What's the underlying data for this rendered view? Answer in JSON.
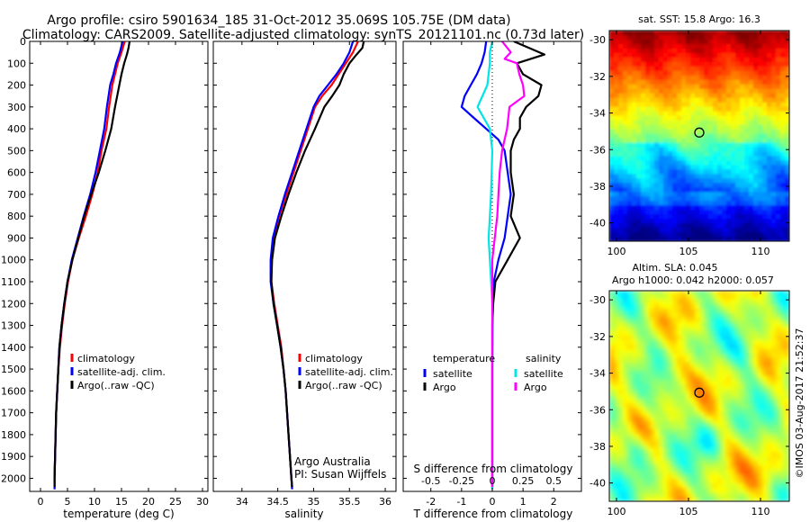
{
  "header": {
    "title_line1": "Argo profile: csiro 5901634_185 31-Oct-2012 35.069S 105.75E (DM data)",
    "title_line2": "Climatology: CARS2009. Satellite-adjusted climatology: synTS_20121101.nc (0.73d later)"
  },
  "footer": {
    "timestamp": "©IMOS 03-Aug-2017 21:52:37",
    "org": "Argo Australia",
    "pi": "PI: Susan Wijffels"
  },
  "colors": {
    "climatology": "#ff0000",
    "satellite": "#0000ff",
    "argo": "#000000",
    "sat_salinity": "#00e5e5",
    "argo_salinity": "#ff00ff"
  },
  "chart_data": [
    {
      "type": "line",
      "id": "temperature",
      "xlabel": "temperature (deg C)",
      "ylabel": "",
      "xlim": [
        -2,
        31
      ],
      "ylim": [
        2060,
        0
      ],
      "x_ticks": [
        0,
        5,
        10,
        15,
        20,
        25,
        30
      ],
      "y_ticks": [
        0,
        100,
        200,
        300,
        400,
        500,
        600,
        700,
        800,
        900,
        1000,
        1100,
        1200,
        1300,
        1400,
        1500,
        1600,
        1700,
        1800,
        1900,
        2000
      ],
      "legend": {
        "position": "middle-right",
        "entries": [
          "climatology",
          "satellite-adj. clim.",
          "Argo(..raw -QC)"
        ]
      },
      "series": [
        {
          "name": "climatology",
          "color": "#ff0000",
          "points": [
            [
              15.6,
              0
            ],
            [
              15.0,
              50
            ],
            [
              14.3,
              100
            ],
            [
              13.8,
              150
            ],
            [
              13.3,
              200
            ],
            [
              12.7,
              300
            ],
            [
              12.2,
              400
            ],
            [
              11.3,
              500
            ],
            [
              10.6,
              600
            ],
            [
              9.6,
              700
            ],
            [
              8.4,
              800
            ],
            [
              7.1,
              900
            ],
            [
              5.9,
              1000
            ],
            [
              5.1,
              1100
            ],
            [
              4.5,
              1200
            ],
            [
              4.0,
              1300
            ],
            [
              3.6,
              1400
            ],
            [
              3.3,
              1500
            ],
            [
              3.1,
              1600
            ],
            [
              2.9,
              1700
            ],
            [
              2.8,
              1800
            ],
            [
              2.7,
              1900
            ],
            [
              2.6,
              2000
            ],
            [
              2.6,
              2050
            ]
          ]
        },
        {
          "name": "satellite-adj. clim.",
          "color": "#0000ff",
          "points": [
            [
              15.2,
              0
            ],
            [
              14.7,
              50
            ],
            [
              14.0,
              100
            ],
            [
              13.5,
              150
            ],
            [
              12.9,
              200
            ],
            [
              12.3,
              300
            ],
            [
              11.8,
              400
            ],
            [
              11.0,
              500
            ],
            [
              10.2,
              600
            ],
            [
              9.2,
              700
            ],
            [
              8.0,
              800
            ],
            [
              6.9,
              900
            ],
            [
              5.8,
              1000
            ],
            [
              5.0,
              1100
            ],
            [
              4.4,
              1200
            ],
            [
              3.9,
              1300
            ],
            [
              3.5,
              1400
            ],
            [
              3.3,
              1500
            ],
            [
              3.1,
              1600
            ],
            [
              2.9,
              1700
            ],
            [
              2.8,
              1800
            ],
            [
              2.7,
              1900
            ],
            [
              2.6,
              2000
            ],
            [
              2.6,
              2050
            ]
          ]
        },
        {
          "name": "Argo(..raw -QC)",
          "color": "#000000",
          "points": [
            [
              16.5,
              0
            ],
            [
              16.3,
              30
            ],
            [
              16.0,
              60
            ],
            [
              15.5,
              100
            ],
            [
              15.0,
              150
            ],
            [
              14.6,
              200
            ],
            [
              14.2,
              250
            ],
            [
              13.8,
              300
            ],
            [
              13.1,
              400
            ],
            [
              12.0,
              500
            ],
            [
              10.8,
              600
            ],
            [
              9.4,
              700
            ],
            [
              8.1,
              800
            ],
            [
              7.0,
              900
            ],
            [
              5.9,
              1000
            ],
            [
              5.0,
              1100
            ],
            [
              4.4,
              1200
            ],
            [
              3.9,
              1300
            ],
            [
              3.5,
              1400
            ],
            [
              3.3,
              1500
            ],
            [
              3.1,
              1600
            ],
            [
              2.9,
              1700
            ],
            [
              2.8,
              1800
            ],
            [
              2.7,
              1900
            ],
            [
              2.6,
              2000
            ],
            [
              2.6,
              2040
            ]
          ]
        }
      ]
    },
    {
      "type": "line",
      "id": "salinity",
      "xlabel": "salinity",
      "ylabel": "",
      "xlim": [
        33.6,
        36.15
      ],
      "ylim": [
        2060,
        0
      ],
      "x_ticks": [
        34,
        34.5,
        35,
        35.5,
        36
      ],
      "legend": {
        "position": "middle-right",
        "entries": [
          "climatology",
          "satellite-adj. clim.",
          "Argo(..raw -QC)"
        ]
      },
      "series": [
        {
          "name": "climatology",
          "color": "#ff0000",
          "points": [
            [
              35.62,
              0
            ],
            [
              35.55,
              50
            ],
            [
              35.45,
              100
            ],
            [
              35.35,
              150
            ],
            [
              35.25,
              200
            ],
            [
              35.12,
              250
            ],
            [
              35.02,
              300
            ],
            [
              34.92,
              400
            ],
            [
              34.82,
              500
            ],
            [
              34.72,
              600
            ],
            [
              34.62,
              700
            ],
            [
              34.52,
              800
            ],
            [
              34.44,
              900
            ],
            [
              34.41,
              1000
            ],
            [
              34.41,
              1100
            ],
            [
              34.45,
              1200
            ],
            [
              34.5,
              1300
            ],
            [
              34.55,
              1400
            ],
            [
              34.58,
              1500
            ],
            [
              34.61,
              1600
            ],
            [
              34.63,
              1700
            ],
            [
              34.65,
              1800
            ],
            [
              34.67,
              1900
            ],
            [
              34.69,
              2000
            ],
            [
              34.7,
              2050
            ]
          ]
        },
        {
          "name": "satellite-adj. clim.",
          "color": "#0000ff",
          "points": [
            [
              35.55,
              0
            ],
            [
              35.5,
              50
            ],
            [
              35.42,
              100
            ],
            [
              35.32,
              150
            ],
            [
              35.2,
              200
            ],
            [
              35.08,
              250
            ],
            [
              35.0,
              300
            ],
            [
              34.9,
              400
            ],
            [
              34.8,
              500
            ],
            [
              34.7,
              600
            ],
            [
              34.6,
              700
            ],
            [
              34.51,
              800
            ],
            [
              34.43,
              900
            ],
            [
              34.4,
              1000
            ],
            [
              34.4,
              1100
            ],
            [
              34.44,
              1200
            ],
            [
              34.49,
              1300
            ],
            [
              34.54,
              1400
            ],
            [
              34.58,
              1500
            ],
            [
              34.61,
              1600
            ],
            [
              34.63,
              1700
            ],
            [
              34.65,
              1800
            ],
            [
              34.67,
              1900
            ],
            [
              34.69,
              2000
            ],
            [
              34.7,
              2050
            ]
          ]
        },
        {
          "name": "Argo(..raw -QC)",
          "color": "#000000",
          "points": [
            [
              35.7,
              0
            ],
            [
              35.68,
              30
            ],
            [
              35.6,
              60
            ],
            [
              35.5,
              100
            ],
            [
              35.42,
              150
            ],
            [
              35.36,
              200
            ],
            [
              35.26,
              250
            ],
            [
              35.15,
              300
            ],
            [
              35.02,
              400
            ],
            [
              34.88,
              500
            ],
            [
              34.76,
              600
            ],
            [
              34.65,
              700
            ],
            [
              34.55,
              800
            ],
            [
              34.46,
              900
            ],
            [
              34.42,
              1000
            ],
            [
              34.41,
              1100
            ],
            [
              34.44,
              1200
            ],
            [
              34.49,
              1300
            ],
            [
              34.54,
              1400
            ],
            [
              34.58,
              1500
            ],
            [
              34.61,
              1600
            ],
            [
              34.63,
              1700
            ],
            [
              34.65,
              1800
            ],
            [
              34.67,
              1900
            ],
            [
              34.69,
              2000
            ],
            [
              34.7,
              2040
            ]
          ]
        }
      ]
    },
    {
      "type": "line",
      "id": "difference",
      "xlabel": "T difference from climatology",
      "top_label": "S difference from climatology",
      "xlim": [
        -2.9,
        2.9
      ],
      "ylim": [
        2060,
        0
      ],
      "x_ticks": [
        -2,
        -1,
        0,
        1,
        2
      ],
      "x_tick_labels": [
        "-2",
        "-1",
        "0",
        "1",
        "2"
      ],
      "s_ticks": [
        -0.5,
        -0.25,
        0,
        0.25,
        0.5
      ],
      "s_tick_labels": [
        "-0.5",
        "-0.25",
        "0",
        "0.25",
        "0.5"
      ],
      "s_scale": 4,
      "legend": {
        "position": "middle",
        "temperature_header": "temperature",
        "salinity_header": "salinity",
        "entries": [
          "satellite",
          "Argo",
          "satellite",
          "Argo"
        ]
      },
      "series": [
        {
          "name": "satellite",
          "group": "temperature",
          "color": "#0000ff",
          "points": [
            [
              -0.2,
              0
            ],
            [
              -0.25,
              50
            ],
            [
              -0.35,
              100
            ],
            [
              -0.5,
              150
            ],
            [
              -0.7,
              200
            ],
            [
              -0.9,
              250
            ],
            [
              -1.0,
              300
            ],
            [
              -0.6,
              350
            ],
            [
              -0.2,
              400
            ],
            [
              0.2,
              450
            ],
            [
              0.4,
              500
            ],
            [
              0.5,
              600
            ],
            [
              0.6,
              700
            ],
            [
              0.5,
              800
            ],
            [
              0.4,
              900
            ],
            [
              0.2,
              1000
            ],
            [
              0.05,
              1100
            ],
            [
              0.02,
              1200
            ],
            [
              0.01,
              1300
            ],
            [
              0.0,
              1500
            ],
            [
              0.0,
              2050
            ]
          ]
        },
        {
          "name": "Argo",
          "group": "temperature",
          "color": "#000000",
          "points": [
            [
              0.7,
              0
            ],
            [
              1.7,
              60
            ],
            [
              0.8,
              100
            ],
            [
              1.0,
              150
            ],
            [
              1.6,
              200
            ],
            [
              1.5,
              250
            ],
            [
              1.1,
              300
            ],
            [
              0.9,
              350
            ],
            [
              0.9,
              400
            ],
            [
              0.7,
              450
            ],
            [
              0.6,
              500
            ],
            [
              0.6,
              600
            ],
            [
              0.7,
              700
            ],
            [
              0.6,
              800
            ],
            [
              0.9,
              900
            ],
            [
              0.5,
              1000
            ],
            [
              0.1,
              1100
            ],
            [
              0.03,
              1200
            ],
            [
              0.0,
              1300
            ],
            [
              0.0,
              2040
            ]
          ]
        },
        {
          "name": "satellite",
          "group": "salinity",
          "color": "#00e5e5",
          "points": [
            [
              0.0,
              0
            ],
            [
              -0.02,
              50
            ],
            [
              -0.02,
              100
            ],
            [
              -0.04,
              200
            ],
            [
              -0.12,
              300
            ],
            [
              -0.02,
              400
            ],
            [
              0.0,
              500
            ],
            [
              -0.01,
              700
            ],
            [
              -0.02,
              800
            ],
            [
              -0.03,
              900
            ],
            [
              -0.02,
              1000
            ],
            [
              0.0,
              1200
            ],
            [
              0.0,
              2050
            ]
          ]
        },
        {
          "name": "Argo",
          "group": "salinity",
          "color": "#ff00ff",
          "points": [
            [
              0.08,
              0
            ],
            [
              0.15,
              50
            ],
            [
              0.1,
              80
            ],
            [
              0.2,
              100
            ],
            [
              0.22,
              150
            ],
            [
              0.25,
              200
            ],
            [
              0.26,
              250
            ],
            [
              0.14,
              300
            ],
            [
              0.12,
              400
            ],
            [
              0.08,
              500
            ],
            [
              0.06,
              600
            ],
            [
              0.04,
              800
            ],
            [
              0.0,
              1000
            ],
            [
              0.0,
              2040
            ]
          ]
        }
      ]
    },
    {
      "type": "heatmap",
      "id": "sst_map",
      "title": "sat. SST: 15.8  Argo: 16.3",
      "xlim": [
        99.5,
        112
      ],
      "ylim": [
        -41,
        -29.5
      ],
      "x_ticks": [
        100,
        105,
        110
      ],
      "y_ticks": [
        -30,
        -32,
        -34,
        -36,
        -38,
        -40
      ],
      "colormap": "jet",
      "marker": {
        "lon": 105.75,
        "lat": -35.069
      }
    },
    {
      "type": "heatmap",
      "id": "sla_map",
      "title_line1": "Altim. SLA: 0.045",
      "title_line2": "Argo h1000: 0.042 h2000: 0.057",
      "xlim": [
        99.5,
        112
      ],
      "ylim": [
        -41,
        -29.5
      ],
      "x_ticks": [
        100,
        105,
        110
      ],
      "y_ticks": [
        -30,
        -32,
        -34,
        -36,
        -38,
        -40
      ],
      "colormap": "jet",
      "marker": {
        "lon": 105.75,
        "lat": -35.069
      }
    }
  ]
}
